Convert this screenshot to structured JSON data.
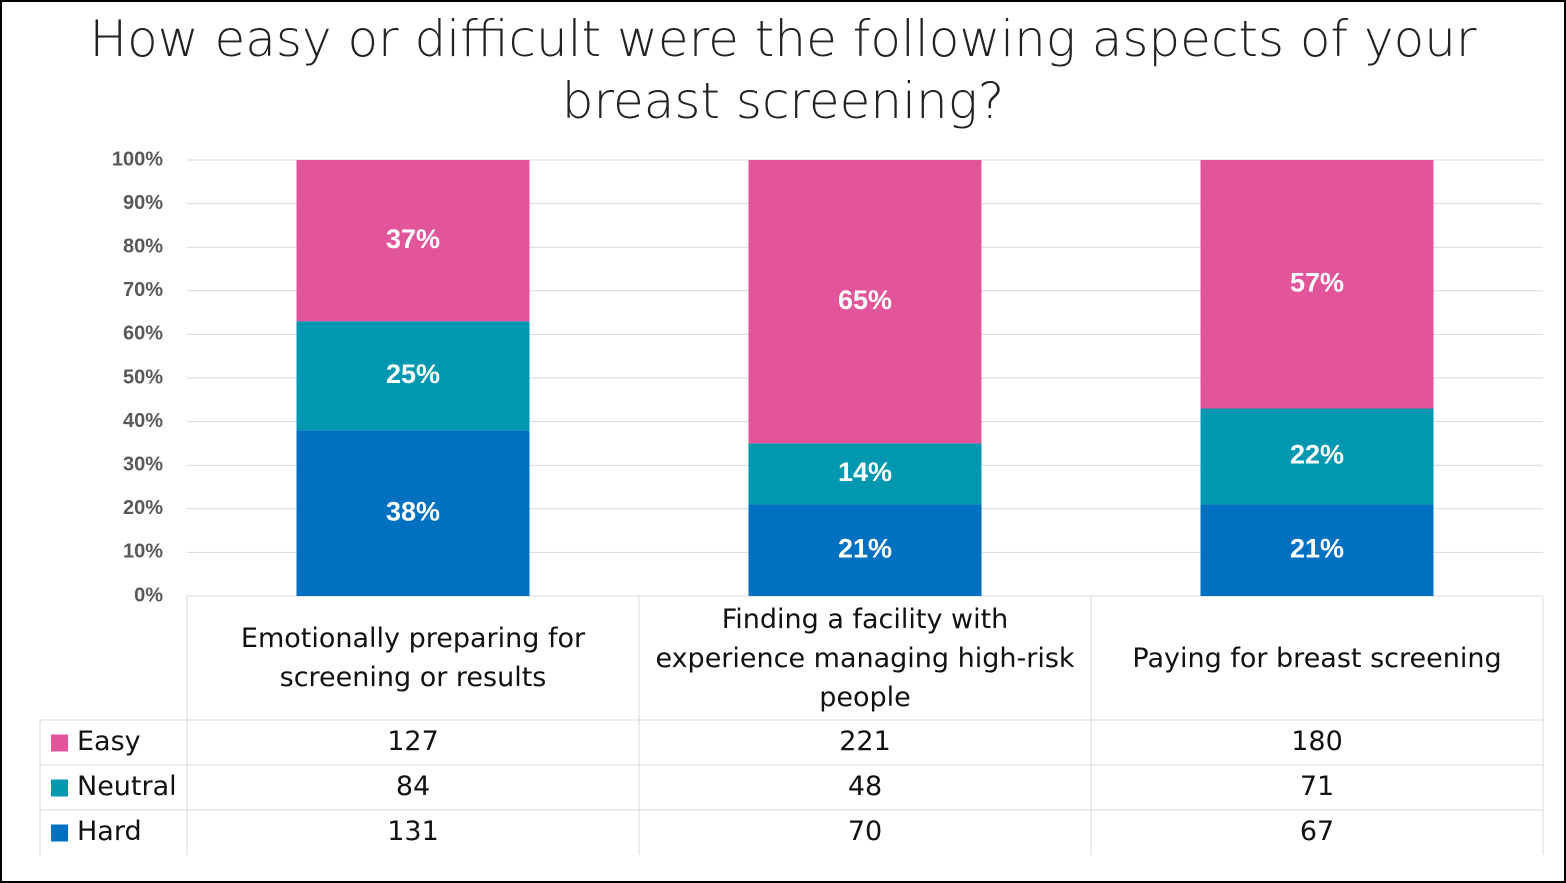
{
  "chart_data": {
    "type": "stacked_bar_100",
    "title": "How easy or difficult were the following aspects of your breast screening?",
    "categories": [
      "Emotionally preparing for screening or results",
      "Finding a facility with experience managing high-risk people",
      "Paying for breast screening"
    ],
    "series": [
      {
        "name": "Easy",
        "color": "#e2559b",
        "values": [
          37,
          65,
          57
        ],
        "value_labels": [
          "37%",
          "65%",
          "57%"
        ],
        "counts": [
          127,
          221,
          180
        ]
      },
      {
        "name": "Neutral",
        "color": "#0098b0",
        "values": [
          25,
          14,
          22
        ],
        "value_labels": [
          "25%",
          "14%",
          "22%"
        ],
        "counts": [
          84,
          48,
          71
        ]
      },
      {
        "name": "Hard",
        "color": "#0070c0",
        "values": [
          38,
          21,
          21
        ],
        "value_labels": [
          "38%",
          "21%",
          "21%"
        ],
        "counts": [
          131,
          70,
          67
        ]
      }
    ],
    "ylim": [
      0,
      100
    ],
    "yticks": [
      {
        "value": 0,
        "label": "0%"
      },
      {
        "value": 10,
        "label": "10%"
      },
      {
        "value": 20,
        "label": "20%"
      },
      {
        "value": 30,
        "label": "30%"
      },
      {
        "value": 40,
        "label": "40%"
      },
      {
        "value": 50,
        "label": "50%"
      },
      {
        "value": 60,
        "label": "60%"
      },
      {
        "value": 70,
        "label": "70%"
      },
      {
        "value": 80,
        "label": "80%"
      },
      {
        "value": 90,
        "label": "90%"
      },
      {
        "value": 100,
        "label": "100%"
      }
    ],
    "grid": true
  }
}
